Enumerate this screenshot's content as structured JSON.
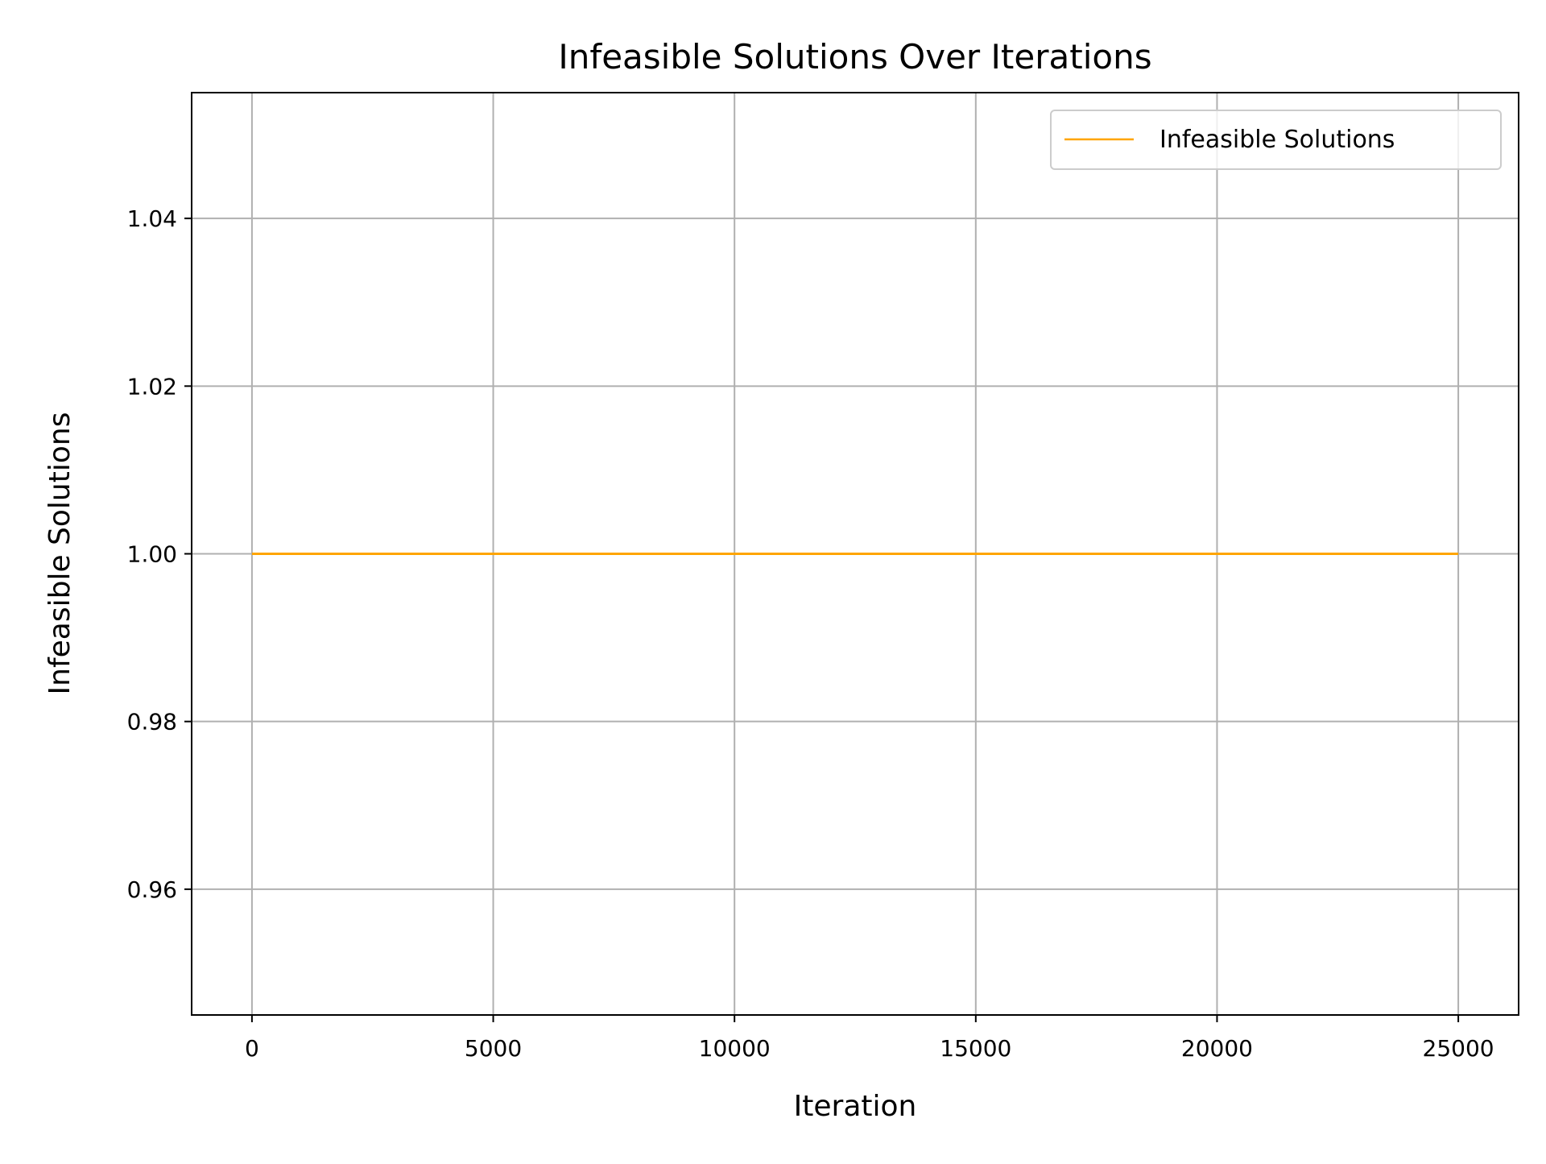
{
  "chart_data": {
    "type": "line",
    "title": "Infeasible Solutions Over Iterations",
    "xlabel": "Iteration",
    "ylabel": "Infeasible Solutions",
    "xlim": [
      -1250,
      26250
    ],
    "ylim": [
      0.945,
      1.055
    ],
    "xticks": [
      0,
      5000,
      10000,
      15000,
      20000,
      25000
    ],
    "xtick_labels": [
      "0",
      "5000",
      "10000",
      "15000",
      "20000",
      "25000"
    ],
    "yticks": [
      0.96,
      0.98,
      1.0,
      1.02,
      1.04
    ],
    "ytick_labels": [
      "0.96",
      "0.98",
      "1.00",
      "1.02",
      "1.04"
    ],
    "grid": true,
    "legend_position": "top-right",
    "series": [
      {
        "name": "Infeasible Solutions",
        "color": "#FFA500",
        "x": [
          0,
          25000
        ],
        "y": [
          1.0,
          1.0
        ]
      }
    ]
  }
}
